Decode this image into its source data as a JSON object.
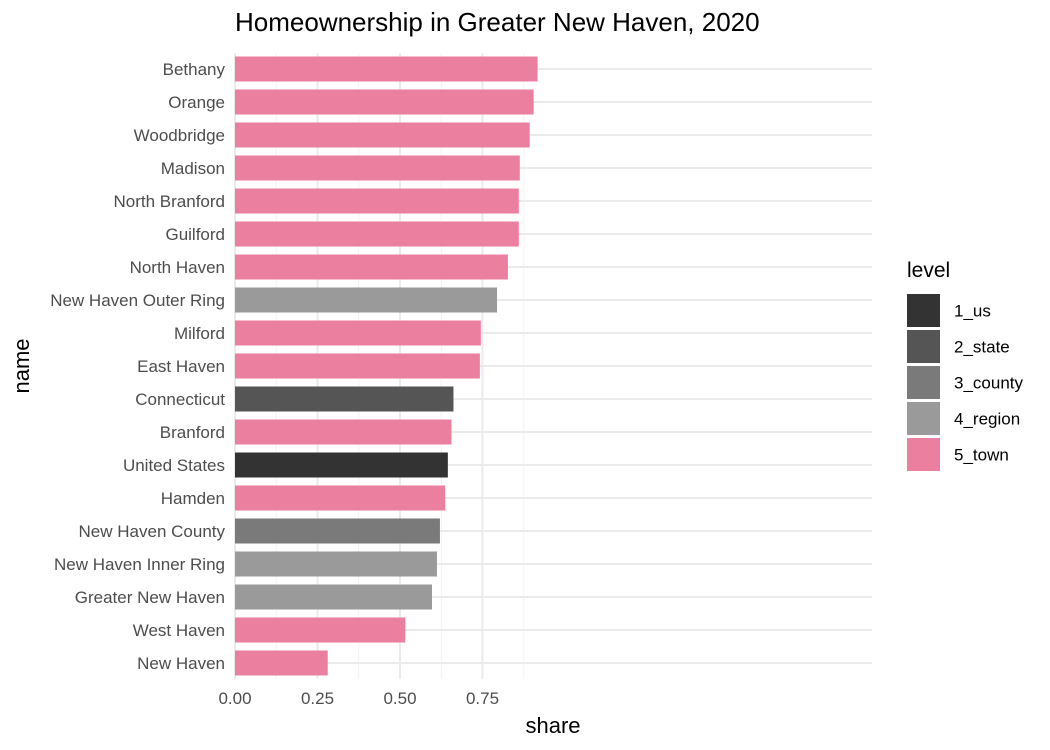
{
  "chart_data": {
    "type": "bar",
    "orientation": "horizontal",
    "title": "Homeownership in Greater New Haven, 2020",
    "xlabel": "share",
    "ylabel": "name",
    "xlim": [
      0,
      0.96
    ],
    "x_ticks": [
      0.0,
      0.25,
      0.5,
      0.75
    ],
    "x_tick_labels": [
      "0.00",
      "0.25",
      "0.50",
      "0.75"
    ],
    "grid": true,
    "legend_position": "right",
    "legend_title": "level",
    "levels": [
      {
        "key": "1_us",
        "label": "1_us",
        "color": "#333333"
      },
      {
        "key": "2_state",
        "label": "2_state",
        "color": "#555555"
      },
      {
        "key": "3_county",
        "label": "3_county",
        "color": "#7a7a7a"
      },
      {
        "key": "4_region",
        "label": "4_region",
        "color": "#9a9a9a"
      },
      {
        "key": "5_town",
        "label": "5_town",
        "color": "#eb7fa0"
      }
    ],
    "bars": [
      {
        "name": "Bethany",
        "value": 0.917,
        "level": "5_town"
      },
      {
        "name": "Orange",
        "value": 0.905,
        "level": "5_town"
      },
      {
        "name": "Woodbridge",
        "value": 0.893,
        "level": "5_town"
      },
      {
        "name": "Madison",
        "value": 0.863,
        "level": "5_town"
      },
      {
        "name": "North Branford",
        "value": 0.86,
        "level": "5_town"
      },
      {
        "name": "Guilford",
        "value": 0.86,
        "level": "5_town"
      },
      {
        "name": "North Haven",
        "value": 0.827,
        "level": "5_town"
      },
      {
        "name": "New Haven Outer Ring",
        "value": 0.794,
        "level": "4_region"
      },
      {
        "name": "Milford",
        "value": 0.745,
        "level": "5_town"
      },
      {
        "name": "East Haven",
        "value": 0.742,
        "level": "5_town"
      },
      {
        "name": "Connecticut",
        "value": 0.662,
        "level": "2_state"
      },
      {
        "name": "Branford",
        "value": 0.656,
        "level": "5_town"
      },
      {
        "name": "United States",
        "value": 0.645,
        "level": "1_us"
      },
      {
        "name": "Hamden",
        "value": 0.637,
        "level": "5_town"
      },
      {
        "name": "New Haven County",
        "value": 0.621,
        "level": "3_county"
      },
      {
        "name": "New Haven Inner Ring",
        "value": 0.612,
        "level": "4_region"
      },
      {
        "name": "Greater New Haven",
        "value": 0.597,
        "level": "4_region"
      },
      {
        "name": "West Haven",
        "value": 0.516,
        "level": "5_town"
      },
      {
        "name": "New Haven",
        "value": 0.281,
        "level": "5_town"
      }
    ]
  }
}
